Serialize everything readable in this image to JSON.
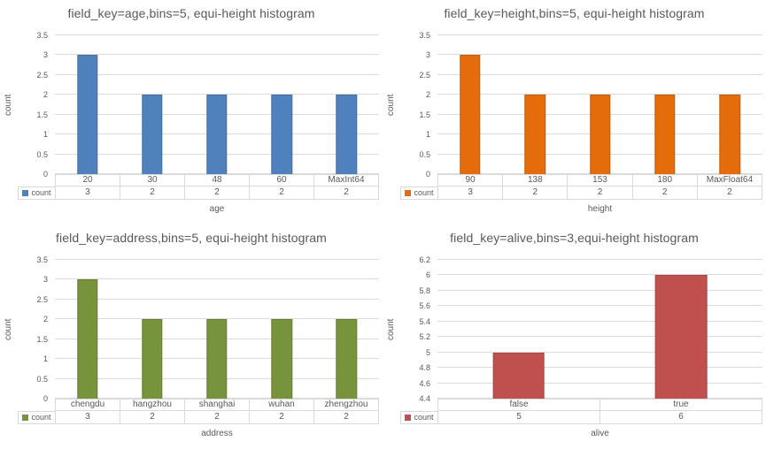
{
  "chart_data": [
    {
      "type": "bar",
      "title": "field_key=age,bins=5, equi-height histogram",
      "categories": [
        "20",
        "30",
        "48",
        "60",
        "MaxInt64"
      ],
      "series": [
        {
          "name": "count",
          "values": [
            3,
            2,
            2,
            2,
            2
          ]
        }
      ],
      "xlabel": "age",
      "ylabel": "count",
      "ylim": [
        0,
        3.5
      ],
      "yticks": [
        "3.5",
        "3",
        "2.5",
        "2",
        "1.5",
        "1",
        "0.5",
        "0"
      ],
      "bar_color": "#4F81BD",
      "grid": true,
      "legend_position": "bottom-left-table"
    },
    {
      "type": "bar",
      "title": "field_key=height,bins=5, equi-height histogram",
      "categories": [
        "90",
        "138",
        "153",
        "180",
        "MaxFloat64"
      ],
      "series": [
        {
          "name": "count",
          "values": [
            3,
            2,
            2,
            2,
            2
          ]
        }
      ],
      "xlabel": "height",
      "ylabel": "count",
      "ylim": [
        0,
        3.5
      ],
      "yticks": [
        "3.5",
        "3",
        "2.5",
        "2",
        "1.5",
        "1",
        "0.5",
        "0"
      ],
      "bar_color": "#E46C0A",
      "grid": true,
      "legend_position": "bottom-left-table"
    },
    {
      "type": "bar",
      "title": "field_key=address,bins=5, equi-height histogram",
      "categories": [
        "chengdu",
        "hangzhou",
        "shanghai",
        "wuhan",
        "zhengzhou"
      ],
      "series": [
        {
          "name": "count",
          "values": [
            3,
            2,
            2,
            2,
            2
          ]
        }
      ],
      "xlabel": "address",
      "ylabel": "count",
      "ylim": [
        0,
        3.5
      ],
      "yticks": [
        "3.5",
        "3",
        "2.5",
        "2",
        "1.5",
        "1",
        "0.5",
        "0"
      ],
      "bar_color": "#77933C",
      "grid": true,
      "legend_position": "bottom-left-table"
    },
    {
      "type": "bar",
      "title": "field_key=alive,bins=3,equi-height histogram",
      "categories": [
        "false",
        "true"
      ],
      "series": [
        {
          "name": "count",
          "values": [
            5,
            6
          ]
        }
      ],
      "xlabel": "alive",
      "ylabel": "count",
      "ylim": [
        4.4,
        6.2
      ],
      "yticks": [
        "6.2",
        "6",
        "5.8",
        "5.6",
        "5.4",
        "5.2",
        "5",
        "4.8",
        "4.6",
        "4.4"
      ],
      "bar_color": "#C0504D",
      "grid": true,
      "legend_position": "bottom-left-table"
    }
  ]
}
